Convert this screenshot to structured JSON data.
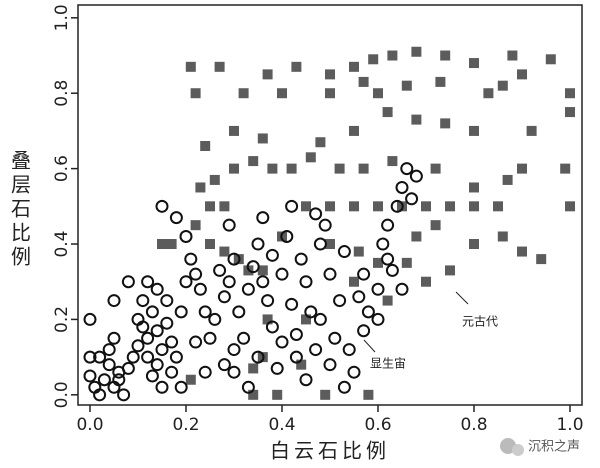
{
  "chart_data": {
    "type": "scatter",
    "x_label": "白云石比例",
    "y_label": "叠层石比例",
    "xlim": [
      -0.025,
      1.025
    ],
    "ylim": [
      -0.027,
      1.034
    ],
    "xticks": [
      {
        "value": 0,
        "label": "0.0"
      },
      0.2,
      0.4,
      0.6,
      0.8,
      {
        "value": 1,
        "label": "1.0"
      }
    ],
    "yticks": [
      {
        "value": 0,
        "label": "0.0"
      },
      0.2,
      0.4,
      0.6,
      0.8,
      {
        "value": 1,
        "label": "1.0"
      }
    ],
    "watermark": "沉积之声",
    "series": [
      {
        "name": "元古代",
        "marker": "square",
        "color": "#5c5c5c",
        "x": [
          0.21,
          0.34,
          0.39,
          0.49,
          0.58,
          0.44,
          0.34,
          0.36,
          0.15,
          0.17,
          0.22,
          0.25,
          0.28,
          0.31,
          0.33,
          0.36,
          0.4,
          0.45,
          0.5,
          0.55,
          0.6,
          0.65,
          0.7,
          0.75,
          0.8,
          0.85,
          1.0,
          0.25,
          0.28,
          0.23,
          0.26,
          0.3,
          0.34,
          0.38,
          0.42,
          0.46,
          0.52,
          0.57,
          0.63,
          0.72,
          0.8,
          0.87,
          0.9,
          0.99,
          0.24,
          0.3,
          0.36,
          0.48,
          0.55,
          0.62,
          0.68,
          0.74,
          0.8,
          0.92,
          1.0,
          0.22,
          0.32,
          0.4,
          0.5,
          0.57,
          0.6,
          0.66,
          0.73,
          0.83,
          0.86,
          1.0,
          0.21,
          0.27,
          0.37,
          0.43,
          0.5,
          0.55,
          0.59,
          0.63,
          0.68,
          0.74,
          0.8,
          0.88,
          0.9,
          0.96,
          0.6,
          0.66,
          0.7,
          0.75,
          0.8,
          0.86,
          0.9,
          0.94,
          0.68,
          0.72,
          0.5,
          0.56,
          0.62,
          0.45,
          0.37,
          0.55
        ],
        "values": [
          0.04,
          0.0,
          0.0,
          0.0,
          0.0,
          0.08,
          0.07,
          0.1,
          0.4,
          0.4,
          0.45,
          0.4,
          0.38,
          0.36,
          0.33,
          0.33,
          0.42,
          0.5,
          0.5,
          0.5,
          0.5,
          0.5,
          0.5,
          0.5,
          0.5,
          0.5,
          0.5,
          0.5,
          0.5,
          0.55,
          0.57,
          0.6,
          0.62,
          0.6,
          0.6,
          0.63,
          0.6,
          0.6,
          0.62,
          0.6,
          0.55,
          0.57,
          0.6,
          0.6,
          0.66,
          0.7,
          0.68,
          0.67,
          0.7,
          0.75,
          0.73,
          0.72,
          0.7,
          0.7,
          0.75,
          0.8,
          0.8,
          0.8,
          0.8,
          0.83,
          0.8,
          0.82,
          0.83,
          0.8,
          0.82,
          0.8,
          0.87,
          0.87,
          0.85,
          0.87,
          0.85,
          0.87,
          0.89,
          0.9,
          0.91,
          0.9,
          0.88,
          0.9,
          0.85,
          0.89,
          0.35,
          0.35,
          0.3,
          0.33,
          0.4,
          0.42,
          0.38,
          0.36,
          0.42,
          0.45,
          0.4,
          0.38,
          0.25,
          0.2,
          0.2,
          0.3
        ]
      },
      {
        "name": "显生宙",
        "marker": "circle",
        "color": "#111111",
        "x": [
          0.0,
          0.0,
          0.0,
          0.01,
          0.02,
          0.03,
          0.04,
          0.05,
          0.06,
          0.07,
          0.02,
          0.04,
          0.05,
          0.06,
          0.08,
          0.09,
          0.1,
          0.1,
          0.11,
          0.12,
          0.12,
          0.13,
          0.13,
          0.14,
          0.14,
          0.15,
          0.15,
          0.16,
          0.16,
          0.17,
          0.17,
          0.18,
          0.19,
          0.2,
          0.19,
          0.12,
          0.14,
          0.11,
          0.05,
          0.08,
          0.15,
          0.18,
          0.2,
          0.21,
          0.22,
          0.23,
          0.24,
          0.22,
          0.25,
          0.26,
          0.27,
          0.28,
          0.29,
          0.3,
          0.31,
          0.32,
          0.33,
          0.34,
          0.35,
          0.36,
          0.37,
          0.38,
          0.38,
          0.4,
          0.41,
          0.42,
          0.43,
          0.43,
          0.44,
          0.45,
          0.46,
          0.47,
          0.48,
          0.49,
          0.5,
          0.5,
          0.51,
          0.52,
          0.53,
          0.54,
          0.55,
          0.56,
          0.57,
          0.58,
          0.6,
          0.61,
          0.62,
          0.63,
          0.64,
          0.65,
          0.66,
          0.68,
          0.67,
          0.62,
          0.65,
          0.6,
          0.57,
          0.35,
          0.3,
          0.28,
          0.24,
          0.3,
          0.39,
          0.45,
          0.53,
          0.29,
          0.42,
          0.47,
          0.33,
          0.48,
          0.36,
          0.4
        ],
        "values": [
          0.2,
          0.1,
          0.05,
          0.02,
          0.0,
          0.04,
          0.08,
          0.02,
          0.06,
          0.0,
          0.1,
          0.12,
          0.15,
          0.04,
          0.07,
          0.1,
          0.13,
          0.2,
          0.18,
          0.15,
          0.1,
          0.05,
          0.22,
          0.17,
          0.08,
          0.12,
          0.02,
          0.19,
          0.25,
          0.14,
          0.06,
          0.1,
          0.22,
          0.3,
          0.02,
          0.3,
          0.28,
          0.25,
          0.25,
          0.3,
          0.5,
          0.47,
          0.42,
          0.36,
          0.32,
          0.28,
          0.22,
          0.14,
          0.15,
          0.2,
          0.33,
          0.26,
          0.3,
          0.36,
          0.22,
          0.15,
          0.28,
          0.34,
          0.4,
          0.3,
          0.25,
          0.18,
          0.37,
          0.32,
          0.42,
          0.24,
          0.16,
          0.1,
          0.36,
          0.3,
          0.22,
          0.12,
          0.4,
          0.45,
          0.32,
          0.08,
          0.15,
          0.25,
          0.38,
          0.12,
          0.06,
          0.26,
          0.32,
          0.22,
          0.28,
          0.4,
          0.45,
          0.33,
          0.5,
          0.55,
          0.6,
          0.58,
          0.52,
          0.36,
          0.28,
          0.2,
          0.17,
          0.1,
          0.12,
          0.08,
          0.06,
          0.06,
          0.07,
          0.04,
          0.02,
          0.45,
          0.5,
          0.48,
          0.02,
          0.2,
          0.47,
          0.14
        ]
      }
    ]
  }
}
